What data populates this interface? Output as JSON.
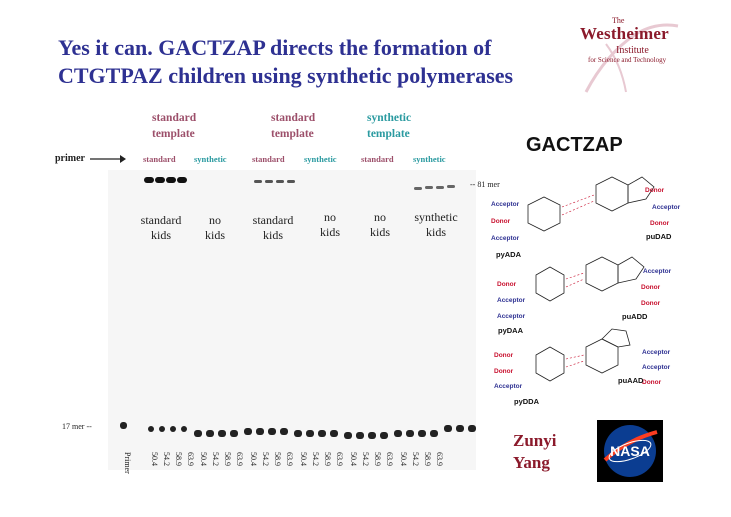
{
  "title": {
    "line1": "Yes it can. GACTZAP directs the formation of",
    "line2": "CTGTPAZ children using synthetic polymerases"
  },
  "logo": {
    "the": "The",
    "name": "Westheimer",
    "institute": "Institute",
    "subtitle": "for Science and Technology"
  },
  "gel": {
    "primer_label": "primer",
    "template_headers": [
      {
        "line1": "standard",
        "line2": "template",
        "color": "#9c4f6a"
      },
      {
        "line1": "standard",
        "line2": "template",
        "color": "#9c4f6a"
      },
      {
        "line1": "synthetic",
        "line2": "template",
        "color": "#2a9aa0"
      }
    ],
    "lane_groups": [
      {
        "label": "standard",
        "color": "#9c4f6a"
      },
      {
        "label": "synthetic",
        "color": "#2a9aa0"
      },
      {
        "label": "standard",
        "color": "#9c4f6a"
      },
      {
        "label": "synthetic",
        "color": "#2a9aa0"
      },
      {
        "label": "standard",
        "color": "#9c4f6a"
      },
      {
        "label": "synthetic",
        "color": "#2a9aa0"
      }
    ],
    "kids": [
      {
        "line1": "standard",
        "line2": "kids"
      },
      {
        "line1": "no",
        "line2": "kids"
      },
      {
        "line1": "standard",
        "line2": "kids"
      },
      {
        "line1": "no",
        "line2": "kids"
      },
      {
        "line1": "no",
        "line2": "kids"
      },
      {
        "line1": "synthetic",
        "line2": "kids"
      }
    ],
    "mer81": "-- 81 mer",
    "mer17": "17 mer --",
    "lane_numbers": [
      "Primer",
      "50.4",
      "54.2",
      "58.9",
      "63.9",
      "50.4",
      "54.2",
      "58.9",
      "63.9",
      "50.4",
      "54.2",
      "58.9",
      "63.9",
      "50.4",
      "54.2",
      "58.9",
      "63.9",
      "50.4",
      "54.2",
      "58.9",
      "63.9",
      "50.4",
      "54.2",
      "58.9",
      "63.9"
    ]
  },
  "gactzap": "GACTZAP",
  "chem": {
    "labels": {
      "a1": "Acceptor",
      "d1": "Donor",
      "a2": "Acceptor",
      "d2": "Donor",
      "a3": "Acceptor",
      "d3": "Donor",
      "d4": "Donor",
      "a4": "Acceptor",
      "a5": "Acceptor",
      "a6": "Acceptor",
      "d5": "Donor",
      "d6": "Donor",
      "d7": "Donor",
      "d8": "Donor",
      "a7": "Acceptor",
      "a8": "Acceptor",
      "a9": "Acceptor",
      "d9": "Donor"
    },
    "pairs": {
      "pyADA": "pyADA",
      "puDAD": "puDAD",
      "pyDAA": "pyDAA",
      "puADD": "puADD",
      "pyDDA": "pyDDA",
      "puAAD": "puAAD"
    }
  },
  "author": {
    "line1": "Zunyi",
    "line2": "Yang"
  },
  "nasa": "NASA"
}
